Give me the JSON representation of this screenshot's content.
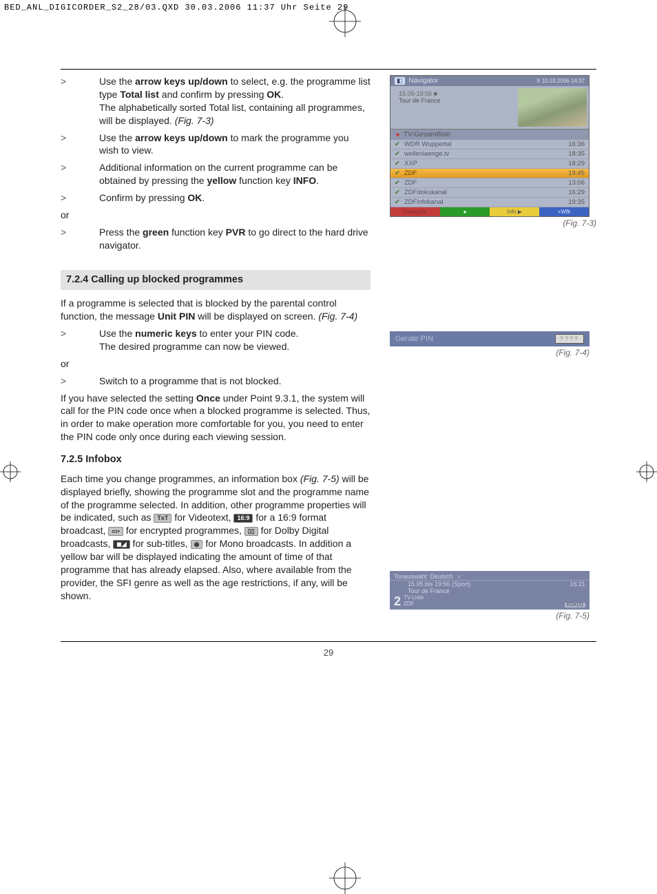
{
  "print_header": "BED_ANL_DIGICORDER_S2_28/03.QXD  30.03.2006  11:37 Uhr  Seite 29",
  "page_number": "29",
  "bullets_top": [
    {
      "pre": "Use the ",
      "b1": "arrow keys up/down",
      "mid": " to select, e.g. the programme list type ",
      "b2": "Total list",
      "mid2": " and confirm by pressing ",
      "b3": "OK",
      "after": ".",
      "line2_pre": "The alphabetically sorted Total list, containing all programmes, will be displayed. ",
      "line2_it": "(Fig. 7-3)"
    },
    {
      "pre": "Use the ",
      "b1": "arrow keys up/down",
      "after": " to mark the programme you wish to view."
    },
    {
      "pre": "Additional information on the current programme can be obtained by pressing the ",
      "b1": "yellow",
      "mid": " function key ",
      "b2": "INFO",
      "after": "."
    },
    {
      "pre": "Confirm by pressing ",
      "b1": "OK",
      "after": "."
    }
  ],
  "or_text": "or",
  "bullet_pvr": {
    "pre": "Press the ",
    "b1": "green",
    "mid": " function key ",
    "b2": "PVR",
    "after": " to go direct to the hard drive navigator."
  },
  "section_724": "7.2.4 Calling up blocked programmes",
  "para_724": {
    "pre": "If a programme is selected that is blocked by the parental control function, the message ",
    "b": "Unit PIN",
    "mid": " will be displayed on screen. ",
    "it": "(Fig. 7-4)"
  },
  "bullet_pin": {
    "pre": "Use the ",
    "b1": "numeric keys",
    "after": " to enter your PIN code.",
    "line2": "The desired programme can now be viewed."
  },
  "bullet_switch": "Switch to a programme that is not blocked.",
  "para_once": {
    "pre": "If you have selected the setting ",
    "b": "Once",
    "after": " under Point 9.3.1, the system will call for the PIN code once when a blocked programme is selected. Thus, in order to make operation more comfortable for you, you need to enter the PIN code only once during each viewing session."
  },
  "section_725": "7.2.5 Infobox",
  "para_725_a": "Each time you change programmes, an information box ",
  "para_725_ref": "(Fig. 7-5)",
  "para_725_b": " will be displayed briefly, showing the programme slot and the programme name of the programme selected. In addition, other programme properties will be indicated, such as ",
  "icon_txt": "TxT",
  "para_725_c": " for Videotext, ",
  "icon_169": "16:9",
  "para_725_d": " for a 16:9 format broadcast, ",
  "para_725_e": " for encrypted programmes, ",
  "icon_dd": "▯▯",
  "para_725_f": " for Dolby Digital broadcasts, ",
  "para_725_g": " for sub-titles, ",
  "para_725_h": " for Mono broadcasts. In addition a yellow bar will be displayed indicating the amount of time of that programme that has already elapsed. Also, where available from the provider, the SFI genre as well as the age restrictions, if any, will be shown.",
  "fig73": {
    "nav": "Navigator",
    "nav_time": "fr 10.03.2006  14:37",
    "time_range": "15.05-19:56  ■",
    "prog_title": "Tour de France",
    "category": "TV-Gesamtliste",
    "rows": [
      {
        "name": "WDR Wuppertal",
        "time": "16:36"
      },
      {
        "name": "wellenlaenge.tv",
        "time": "18:35"
      },
      {
        "name": "XXP",
        "time": "18:29"
      },
      {
        "name": "ZDF",
        "time": "19:45",
        "selected": true
      },
      {
        "name": "ZDF",
        "time": "13:06"
      },
      {
        "name": "ZDFdokukanal",
        "time": "16:29"
      },
      {
        "name": "ZDFinfokanal",
        "time": "19:35"
      }
    ],
    "footer": {
      "red": "Kategorie",
      "green": "●",
      "yellow": "Info ▶",
      "blue": "+Wfk"
    },
    "caption": "(Fig. 7-3)"
  },
  "fig74": {
    "label": "Gerate PIN",
    "input": "????",
    "caption": "(Fig. 7-4)"
  },
  "fig75": {
    "lang": "Tonauswahl: Deutsch",
    "line1": "15.05 bis 19:56 (Sport)",
    "line2": "Tour de France",
    "clock": "16:21",
    "chnum": "2",
    "chlabel_a": "TV-Liste",
    "chlabel_b": "ZDF",
    "icon": "EGK(S)",
    "caption": "(Fig. 7-5)"
  }
}
